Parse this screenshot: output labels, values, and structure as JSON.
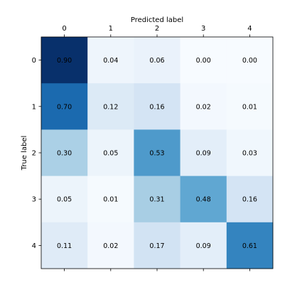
{
  "chart_data": {
    "type": "heatmap",
    "xlabel": "Predicted label",
    "ylabel": "True label",
    "x_ticks": [
      "0",
      "1",
      "2",
      "3",
      "4"
    ],
    "y_ticks": [
      "0",
      "1",
      "2",
      "3",
      "4"
    ],
    "x_axis_position": "top",
    "colormap": "Blues",
    "value_range": [
      0,
      0.9
    ],
    "matrix": [
      [
        0.9,
        0.04,
        0.06,
        0.0,
        0.0
      ],
      [
        0.7,
        0.12,
        0.16,
        0.02,
        0.01
      ],
      [
        0.3,
        0.05,
        0.53,
        0.09,
        0.03
      ],
      [
        0.05,
        0.01,
        0.31,
        0.48,
        0.16
      ],
      [
        0.11,
        0.02,
        0.17,
        0.09,
        0.61
      ]
    ],
    "cell_labels": [
      [
        "0.90",
        "0.04",
        "0.06",
        "0.00",
        "0.00"
      ],
      [
        "0.70",
        "0.12",
        "0.16",
        "0.02",
        "0.01"
      ],
      [
        "0.30",
        "0.05",
        "0.53",
        "0.09",
        "0.03"
      ],
      [
        "0.05",
        "0.01",
        "0.31",
        "0.48",
        "0.16"
      ],
      [
        "0.11",
        "0.02",
        "0.17",
        "0.09",
        "0.61"
      ]
    ],
    "grid": false
  }
}
